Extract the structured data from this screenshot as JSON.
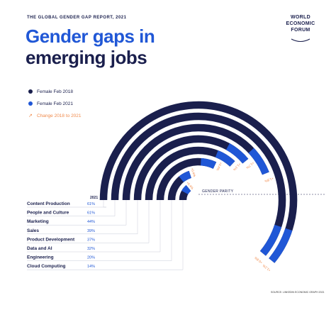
{
  "header": {
    "eyebrow": "THE GLOBAL GENDER GAP REPORT, 2021",
    "title_line1": "Gender gaps in",
    "title_line2": "emerging jobs"
  },
  "logo": {
    "line1": "WORLD",
    "line2": "ECONOMIC",
    "line3": "FORUM"
  },
  "legend": [
    {
      "label": "Female Feb 2018",
      "color": "#1a1f4d",
      "icon": "dot"
    },
    {
      "label": "Female Feb 2021",
      "color": "#2057d6",
      "icon": "dot"
    },
    {
      "label": "Change 2018 to 2021",
      "color": "#f08a4b",
      "icon": "change-arrows"
    }
  ],
  "parity_label": "GENDER PARITY",
  "source": "SOURCE: LINKEDIN ECONOMIC GRAPH 2021",
  "chart_data": {
    "type": "radial-bar",
    "column_header": "2021",
    "categories": [
      "Content Production",
      "People and Culture",
      "Marketing",
      "Sales",
      "Product Development",
      "Data and AI",
      "Engineering",
      "Cloud Computing"
    ],
    "series": [
      {
        "name": "Female Feb 2021",
        "values": [
          61,
          61,
          44,
          39,
          37,
          32,
          20,
          14
        ],
        "color": "#2057d6"
      }
    ],
    "value_labels": [
      "61%",
      "61%",
      "44%",
      "39%",
      "37%",
      "32%",
      "20%",
      "14%"
    ],
    "change_labels": [
      "+1.2%",
      "+0.8%",
      "+1.8%",
      "+1.7%",
      "+1.1%",
      "+0.4%",
      "+0.4%",
      "+0.4%"
    ],
    "scale": {
      "parity_value": 50,
      "max": 100
    },
    "colors": {
      "bar2018": "#1a1f4d",
      "bar2021": "#2057d6",
      "change": "#f08a4b"
    }
  }
}
